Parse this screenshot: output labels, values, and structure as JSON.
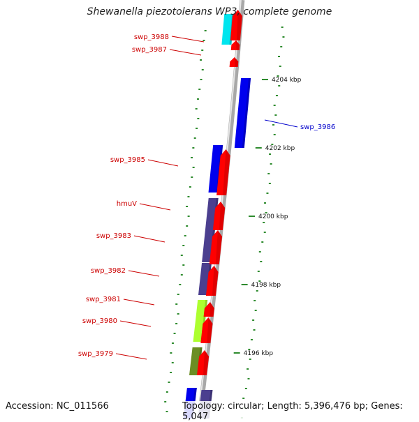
{
  "title": "Shewanella piezotolerans WP3, complete genome",
  "footer": {
    "accession": "Accession: NC_011566",
    "topology": "Topology: circular; Length: 5,396,476 bp; Genes: 5,047"
  },
  "colors": {
    "backbone": "#a8a8a8",
    "backbone_light": "#e6e6e6",
    "gc_dots": "#2e8b2e",
    "forward_gene": "#ff0000",
    "tick_label": "#111111",
    "label_red": "#cc0000",
    "label_blue": "#0000cc"
  },
  "ticks": [
    {
      "label": "4196 kbp"
    },
    {
      "label": "4198 kbp"
    },
    {
      "label": "4200 kbp"
    },
    {
      "label": "4202 kbp"
    },
    {
      "label": "4204 kbp"
    }
  ],
  "genes": [
    {
      "name": "swp_3988",
      "strand": "reverse",
      "color": "#00e5ee",
      "label_color": "#cc0000"
    },
    {
      "name": "swp_3987",
      "strand": "forward",
      "color": "#ff0000",
      "label_color": "#cc0000"
    },
    {
      "name": "swp_3986",
      "strand": "reverse",
      "color": "#0000ee",
      "label_color": "#0000cc"
    },
    {
      "name": "swp_3985",
      "strand": "reverse",
      "color": "#0000ee",
      "label_color": "#cc0000"
    },
    {
      "name": "hmuV",
      "strand": "reverse",
      "color": "#4b3f8f",
      "label_color": "#cc0000"
    },
    {
      "name": "swp_3983",
      "strand": "reverse",
      "color": "#4b3f8f",
      "label_color": "#cc0000"
    },
    {
      "name": "swp_3982",
      "strand": "reverse",
      "color": "#4b3f8f",
      "label_color": "#cc0000"
    },
    {
      "name": "swp_3981",
      "strand": "reverse",
      "color": "#adff2f",
      "label_color": "#cc0000"
    },
    {
      "name": "swp_3980",
      "strand": "reverse",
      "color": "#adff2f",
      "label_color": "#cc0000"
    },
    {
      "name": "swp_3979",
      "strand": "reverse",
      "color": "#6b8e23",
      "label_color": "#cc0000"
    }
  ]
}
